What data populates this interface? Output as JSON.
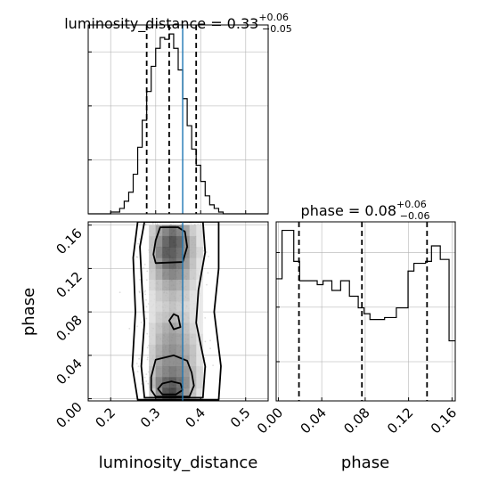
{
  "chart_data": {
    "type": "corner",
    "parameters": [
      "luminosity_distance",
      "phase"
    ],
    "truth": {
      "luminosity_distance": 0.36
    },
    "titles": {
      "luminosity_distance": {
        "lead": "luminosity_distance = 0.33",
        "plus": "+0.06",
        "minus": "−0.05"
      },
      "phase": {
        "lead": "phase = 0.08",
        "plus": "+0.06",
        "minus": "−0.06"
      }
    },
    "xlabels": {
      "left": "luminosity_distance",
      "right": "phase"
    },
    "ylabel": "phase",
    "luminosity_distance_axis": {
      "range": [
        0.15,
        0.55
      ],
      "ticks": [
        0.2,
        0.3,
        0.4,
        0.5
      ],
      "ticklabels": [
        "0.2",
        "0.3",
        "0.4",
        "0.5"
      ]
    },
    "phase_axis": {
      "range": [
        -0.002,
        0.163
      ],
      "ticks": [
        0.0,
        0.04,
        0.08,
        0.12,
        0.16
      ],
      "ticklabels": [
        "0.00",
        "0.04",
        "0.08",
        "0.12",
        "0.16"
      ]
    },
    "luminosity_distance_hist": {
      "edges": [
        0.15,
        0.16,
        0.17,
        0.18,
        0.19,
        0.2,
        0.21,
        0.22,
        0.23,
        0.24,
        0.25,
        0.26,
        0.27,
        0.28,
        0.29,
        0.3,
        0.31,
        0.32,
        0.33,
        0.34,
        0.35,
        0.36,
        0.37,
        0.38,
        0.39,
        0.4,
        0.41,
        0.42,
        0.43,
        0.44,
        0.45,
        0.46,
        0.47,
        0.48,
        0.49,
        0.5,
        0.51,
        0.52,
        0.53,
        0.54,
        0.55
      ],
      "counts": [
        0,
        0,
        0,
        0,
        0,
        1,
        1,
        3,
        7,
        12,
        22,
        37,
        52,
        68,
        82,
        92,
        98,
        97,
        100,
        92,
        80,
        64,
        49,
        36,
        27,
        18,
        10,
        5,
        3,
        1,
        0,
        0,
        0,
        0,
        0,
        0,
        0,
        0,
        0,
        0
      ],
      "quantiles": [
        0.28,
        0.33,
        0.39
      ]
    },
    "phase_hist": {
      "edges": [
        -0.002,
        0.0007,
        0.0034,
        0.0061,
        0.0088,
        0.0115,
        0.0142,
        0.0169,
        0.0196,
        0.0223,
        0.025,
        0.0277,
        0.0304,
        0.0331,
        0.0358,
        0.0385,
        0.0412,
        0.0439,
        0.0466,
        0.0493,
        0.052,
        0.0547,
        0.0574,
        0.0601,
        0.0628,
        0.0655,
        0.0682,
        0.0709,
        0.0736,
        0.0763,
        0.079,
        0.0817,
        0.0844,
        0.0871,
        0.0898,
        0.0925,
        0.0952,
        0.0979,
        0.1006,
        0.1033,
        0.106,
        0.1087,
        0.1114,
        0.1141,
        0.1168,
        0.1195,
        0.1222,
        0.1249,
        0.1276,
        0.1303,
        0.133,
        0.1357,
        0.1384,
        0.1411,
        0.1438,
        0.1465,
        0.1492,
        0.1519,
        0.1546,
        0.1573,
        0.16,
        0.163
      ],
      "counts": [
        63,
        63,
        88,
        88,
        88,
        88,
        72,
        72,
        62,
        62,
        62,
        62,
        62,
        62,
        60,
        60,
        62,
        62,
        62,
        57,
        57,
        57,
        62,
        62,
        62,
        54,
        54,
        54,
        48,
        48,
        45,
        45,
        42,
        42,
        42,
        42,
        42,
        43,
        43,
        43,
        43,
        48,
        48,
        48,
        48,
        67,
        67,
        71,
        71,
        71,
        71,
        72,
        72,
        80,
        80,
        80,
        73,
        73,
        73,
        31,
        31
      ],
      "quantiles": [
        0.019,
        0.077,
        0.137
      ]
    },
    "density_2d": {
      "x_edges": [
        0.285,
        0.3,
        0.315,
        0.33,
        0.345,
        0.36,
        0.375,
        0.39,
        0.405
      ],
      "y_edges": [
        0.0,
        0.01,
        0.02,
        0.03,
        0.04,
        0.05,
        0.06,
        0.07,
        0.08,
        0.09,
        0.1,
        0.11,
        0.12,
        0.13,
        0.14,
        0.15,
        0.16
      ],
      "values": [
        [
          0.25,
          0.55,
          0.85,
          0.9,
          0.75,
          0.5,
          0.3,
          0.15
        ],
        [
          0.35,
          0.6,
          0.75,
          0.8,
          0.7,
          0.55,
          0.35,
          0.2
        ],
        [
          0.3,
          0.5,
          0.6,
          0.65,
          0.6,
          0.5,
          0.35,
          0.2
        ],
        [
          0.25,
          0.45,
          0.55,
          0.55,
          0.55,
          0.45,
          0.3,
          0.15
        ],
        [
          0.25,
          0.4,
          0.5,
          0.55,
          0.5,
          0.4,
          0.3,
          0.15
        ],
        [
          0.2,
          0.35,
          0.45,
          0.5,
          0.45,
          0.35,
          0.25,
          0.15
        ],
        [
          0.2,
          0.3,
          0.4,
          0.45,
          0.4,
          0.3,
          0.2,
          0.1
        ],
        [
          0.15,
          0.25,
          0.3,
          0.35,
          0.3,
          0.25,
          0.15,
          0.1
        ],
        [
          0.15,
          0.2,
          0.25,
          0.3,
          0.25,
          0.2,
          0.15,
          0.1
        ],
        [
          0.15,
          0.25,
          0.3,
          0.35,
          0.3,
          0.25,
          0.15,
          0.1
        ],
        [
          0.2,
          0.3,
          0.4,
          0.45,
          0.4,
          0.3,
          0.2,
          0.1
        ],
        [
          0.25,
          0.4,
          0.55,
          0.6,
          0.55,
          0.4,
          0.25,
          0.15
        ],
        [
          0.3,
          0.5,
          0.7,
          0.75,
          0.65,
          0.5,
          0.3,
          0.15
        ],
        [
          0.3,
          0.6,
          0.8,
          0.8,
          0.7,
          0.55,
          0.35,
          0.2
        ],
        [
          0.3,
          0.55,
          0.75,
          0.85,
          0.75,
          0.55,
          0.35,
          0.15
        ],
        [
          0.25,
          0.45,
          0.6,
          0.7,
          0.6,
          0.45,
          0.25,
          0.15
        ]
      ]
    },
    "contours": [
      [
        [
          0.315,
          0.004
        ],
        [
          0.345,
          0.004
        ],
        [
          0.36,
          0.008
        ],
        [
          0.355,
          0.014
        ],
        [
          0.335,
          0.016
        ],
        [
          0.315,
          0.014
        ],
        [
          0.305,
          0.009
        ]
      ],
      [
        [
          0.3,
          0.002
        ],
        [
          0.375,
          0.002
        ],
        [
          0.385,
          0.012
        ],
        [
          0.38,
          0.024
        ],
        [
          0.37,
          0.035
        ],
        [
          0.34,
          0.04
        ],
        [
          0.3,
          0.036
        ],
        [
          0.29,
          0.02
        ],
        [
          0.29,
          0.008
        ]
      ],
      [
        [
          0.3,
          0.125
        ],
        [
          0.36,
          0.126
        ],
        [
          0.37,
          0.14
        ],
        [
          0.365,
          0.154
        ],
        [
          0.35,
          0.158
        ],
        [
          0.31,
          0.158
        ],
        [
          0.3,
          0.146
        ],
        [
          0.295,
          0.133
        ]
      ],
      [
        [
          0.34,
          0.064
        ],
        [
          0.355,
          0.066
        ],
        [
          0.35,
          0.076
        ],
        [
          0.34,
          0.078
        ],
        [
          0.33,
          0.072
        ]
      ],
      [
        [
          0.275,
          0.001
        ],
        [
          0.405,
          0.001
        ],
        [
          0.41,
          0.03
        ],
        [
          0.39,
          0.07
        ],
        [
          0.395,
          0.1
        ],
        [
          0.41,
          0.135
        ],
        [
          0.405,
          0.163
        ],
        [
          0.275,
          0.163
        ],
        [
          0.265,
          0.14
        ],
        [
          0.27,
          0.1
        ],
        [
          0.275,
          0.07
        ],
        [
          0.268,
          0.03
        ]
      ],
      [
        [
          0.26,
          -0.001
        ],
        [
          0.44,
          -0.001
        ],
        [
          0.445,
          0.03
        ],
        [
          0.43,
          0.08
        ],
        [
          0.44,
          0.12
        ],
        [
          0.44,
          0.163
        ],
        [
          0.26,
          0.163
        ],
        [
          0.25,
          0.13
        ],
        [
          0.255,
          0.08
        ],
        [
          0.248,
          0.03
        ]
      ]
    ]
  }
}
